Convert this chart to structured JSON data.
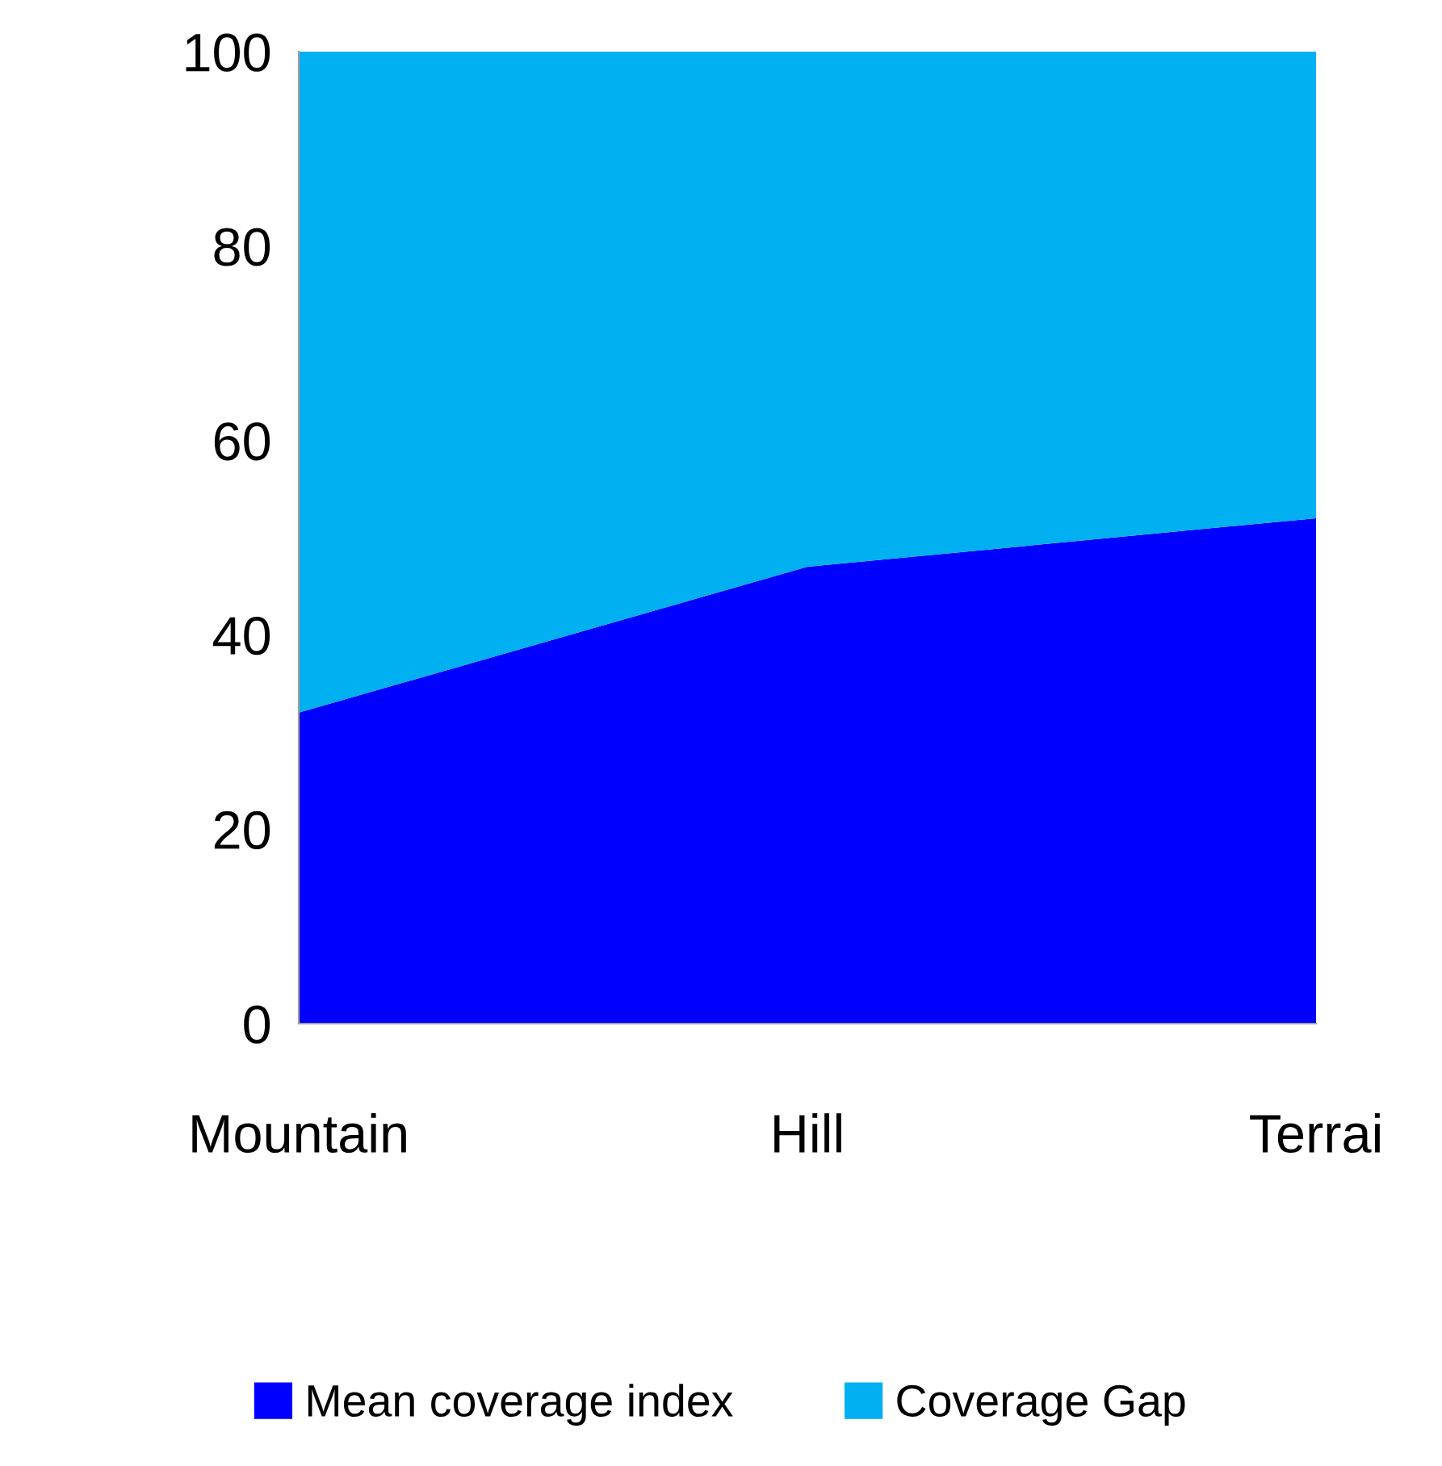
{
  "chart_data": {
    "type": "area",
    "stacked": true,
    "categories": [
      "Mountain",
      "Hill",
      "Terrai"
    ],
    "series": [
      {
        "name": "Mean coverage index",
        "color": "#0000ff",
        "values": [
          32,
          47,
          52
        ]
      },
      {
        "name": "Coverage Gap",
        "color": "#00b0f0",
        "values": [
          68,
          53,
          48
        ]
      }
    ],
    "ylim": [
      0,
      100
    ],
    "yticks": [
      0,
      20,
      40,
      60,
      80,
      100
    ],
    "grid": false,
    "legend": "bottom"
  }
}
